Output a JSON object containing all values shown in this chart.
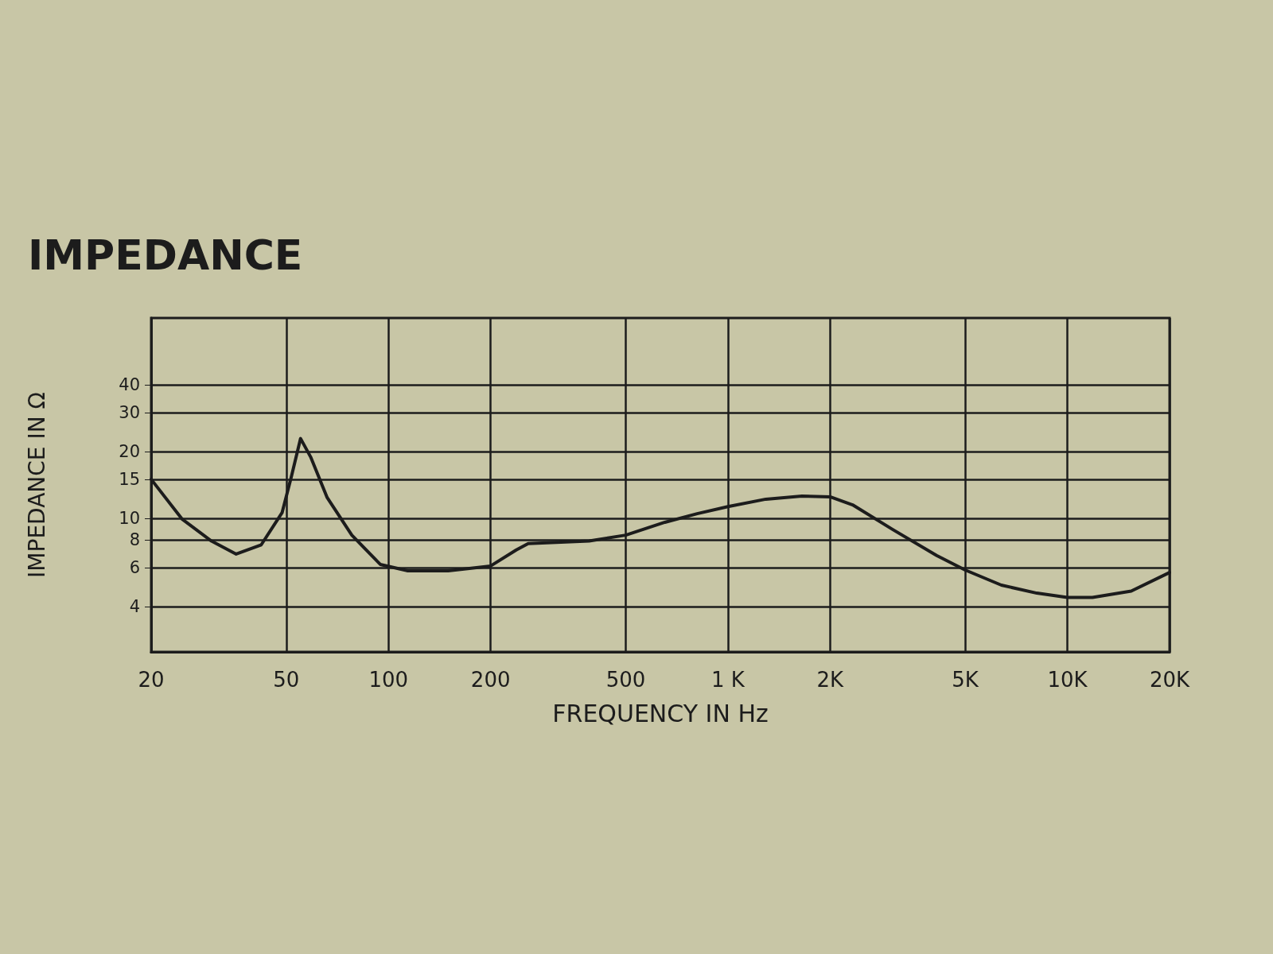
{
  "chart_data": {
    "type": "line",
    "title": "IMPEDANCE",
    "xlabel": "FREQUENCY IN Hz",
    "ylabel": "IMPEDANCE IN Ω",
    "log": "xy",
    "grid": true,
    "marker": "none",
    "line_style": "solid",
    "xlim": [
      20,
      20000
    ],
    "xticks": [
      20,
      50,
      100,
      200,
      500,
      {
        "value": 1000,
        "label": "1 K"
      },
      {
        "value": 2000,
        "label": "2K"
      },
      {
        "value": 5000,
        "label": "5K"
      },
      {
        "value": 10000,
        "label": "10K"
      },
      {
        "value": 20000,
        "label": "20K"
      }
    ],
    "ylim": [
      2.5,
      80
    ],
    "yticks": [
      4,
      6,
      8,
      10,
      15,
      20,
      30,
      40
    ],
    "x": [
      20,
      24.7,
      30.1,
      35.6,
      42.2,
      48.6,
      51.7,
      55.1,
      59,
      66,
      78,
      94.6,
      114,
      150,
      200,
      238,
      258,
      390,
      500,
      652,
      812,
      1000,
      1293,
      1653,
      2000,
      2330,
      3060,
      4120,
      5000,
      6390,
      8130,
      10000,
      11850,
      15420,
      20000
    ],
    "series": [
      {
        "color": "#1c1c1c",
        "values": [
          15,
          9.9,
          7.9,
          6.9,
          7.6,
          10.6,
          15.3,
          22.9,
          18.9,
          12.4,
          8.4,
          6.2,
          5.8,
          5.8,
          6.1,
          7.2,
          7.7,
          7.9,
          8.4,
          9.6,
          10.5,
          11.3,
          12.2,
          12.6,
          12.5,
          11.5,
          8.9,
          6.8,
          5.85,
          5.0,
          4.6,
          4.4,
          4.4,
          4.7,
          5.7
        ]
      }
    ]
  }
}
